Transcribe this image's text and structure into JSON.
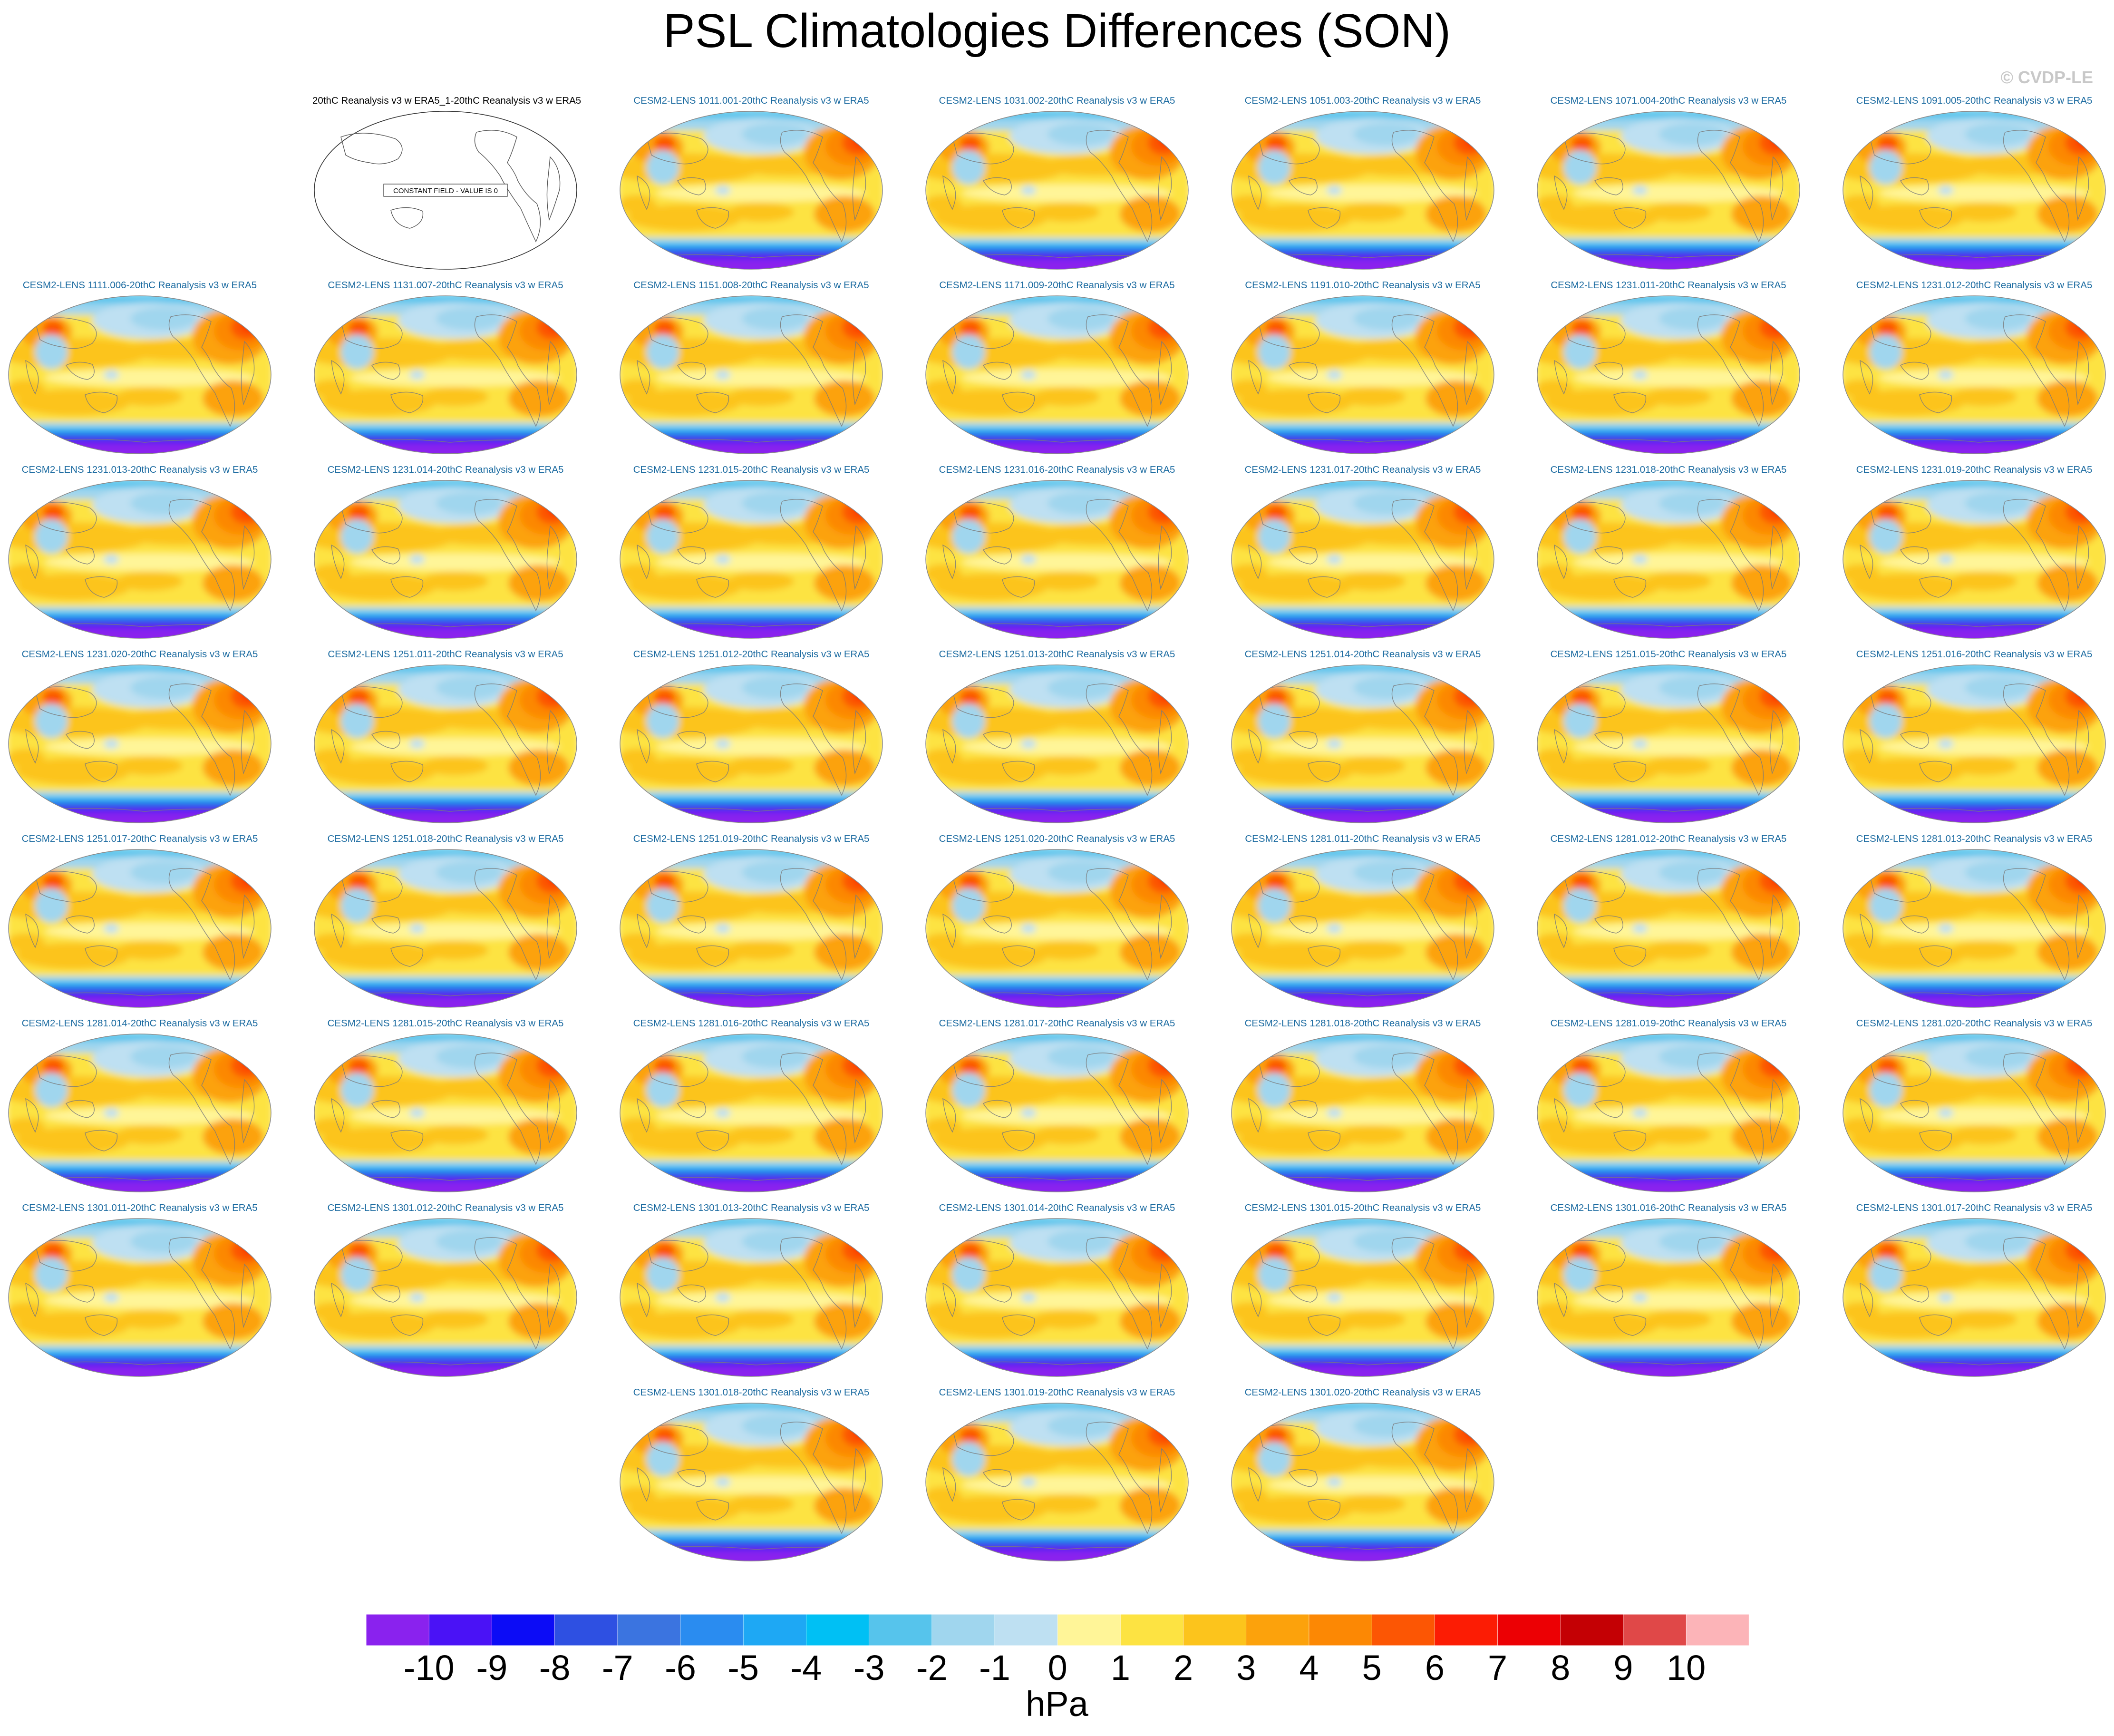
{
  "title": "PSL Climatologies Differences (SON)",
  "credit": "© CVDP-LE",
  "obs_panel": {
    "title": "20thC Reanalysis v3 w ERA5_1-20thC Reanalysis v3 w ERA5",
    "note": "CONSTANT FIELD - VALUE IS 0"
  },
  "chart_data": {
    "type": "heatmap",
    "title": "PSL Climatologies Differences (SON)",
    "variable": "PSL",
    "season": "SON",
    "projection": "Robinson, Pacific-centered global map",
    "units": "hPa",
    "colorbar": {
      "levels": [
        -10,
        -9,
        -8,
        -7,
        -6,
        -5,
        -4,
        -3,
        -2,
        -1,
        0,
        1,
        2,
        3,
        4,
        5,
        6,
        7,
        8,
        9,
        10
      ],
      "labels": [
        "-10",
        "-9",
        "-8",
        "-7",
        "-6",
        "-5",
        "-4",
        "-3",
        "-2",
        "-1",
        "0",
        "1",
        "2",
        "3",
        "4",
        "5",
        "6",
        "7",
        "8",
        "9",
        "10"
      ],
      "colors": [
        "#8a22ee",
        "#4a12f6",
        "#0c0cf6",
        "#2e50e2",
        "#3b74e0",
        "#2a8cf0",
        "#1ea8f4",
        "#00c0f4",
        "#56c4ec",
        "#a0d6ee",
        "#bee0f2",
        "#fff598",
        "#fde342",
        "#fcc41c",
        "#fca20c",
        "#fc8804",
        "#fc5604",
        "#fc1c04",
        "#ec0004",
        "#c40004",
        "#e04848",
        "#fcb4b8"
      ]
    },
    "panels": [
      {
        "title": "20thC Reanalysis v3 w ERA5_1-20thC Reanalysis v3 w ERA5",
        "constant_value": 0
      },
      {
        "title": "CESM2-LENS 1011.001-20thC Reanalysis v3 w ERA5"
      },
      {
        "title": "CESM2-LENS 1031.002-20thC Reanalysis v3 w ERA5"
      },
      {
        "title": "CESM2-LENS 1051.003-20thC Reanalysis v3 w ERA5"
      },
      {
        "title": "CESM2-LENS 1071.004-20thC Reanalysis v3 w ERA5"
      },
      {
        "title": "CESM2-LENS 1091.005-20thC Reanalysis v3 w ERA5"
      },
      {
        "title": "CESM2-LENS 1111.006-20thC Reanalysis v3 w ERA5"
      },
      {
        "title": "CESM2-LENS 1131.007-20thC Reanalysis v3 w ERA5"
      },
      {
        "title": "CESM2-LENS 1151.008-20thC Reanalysis v3 w ERA5"
      },
      {
        "title": "CESM2-LENS 1171.009-20thC Reanalysis v3 w ERA5"
      },
      {
        "title": "CESM2-LENS 1191.010-20thC Reanalysis v3 w ERA5"
      },
      {
        "title": "CESM2-LENS 1231.011-20thC Reanalysis v3 w ERA5"
      },
      {
        "title": "CESM2-LENS 1231.012-20thC Reanalysis v3 w ERA5"
      },
      {
        "title": "CESM2-LENS 1231.013-20thC Reanalysis v3 w ERA5"
      },
      {
        "title": "CESM2-LENS 1231.014-20thC Reanalysis v3 w ERA5"
      },
      {
        "title": "CESM2-LENS 1231.015-20thC Reanalysis v3 w ERA5"
      },
      {
        "title": "CESM2-LENS 1231.016-20thC Reanalysis v3 w ERA5"
      },
      {
        "title": "CESM2-LENS 1231.017-20thC Reanalysis v3 w ERA5"
      },
      {
        "title": "CESM2-LENS 1231.018-20thC Reanalysis v3 w ERA5"
      },
      {
        "title": "CESM2-LENS 1231.019-20thC Reanalysis v3 w ERA5"
      },
      {
        "title": "CESM2-LENS 1231.020-20thC Reanalysis v3 w ERA5"
      },
      {
        "title": "CESM2-LENS 1251.011-20thC Reanalysis v3 w ERA5"
      },
      {
        "title": "CESM2-LENS 1251.012-20thC Reanalysis v3 w ERA5"
      },
      {
        "title": "CESM2-LENS 1251.013-20thC Reanalysis v3 w ERA5"
      },
      {
        "title": "CESM2-LENS 1251.014-20thC Reanalysis v3 w ERA5"
      },
      {
        "title": "CESM2-LENS 1251.015-20thC Reanalysis v3 w ERA5"
      },
      {
        "title": "CESM2-LENS 1251.016-20thC Reanalysis v3 w ERA5"
      },
      {
        "title": "CESM2-LENS 1251.017-20thC Reanalysis v3 w ERA5"
      },
      {
        "title": "CESM2-LENS 1251.018-20thC Reanalysis v3 w ERA5"
      },
      {
        "title": "CESM2-LENS 1251.019-20thC Reanalysis v3 w ERA5"
      },
      {
        "title": "CESM2-LENS 1251.020-20thC Reanalysis v3 w ERA5"
      },
      {
        "title": "CESM2-LENS 1281.011-20thC Reanalysis v3 w ERA5"
      },
      {
        "title": "CESM2-LENS 1281.012-20thC Reanalysis v3 w ERA5"
      },
      {
        "title": "CESM2-LENS 1281.013-20thC Reanalysis v3 w ERA5"
      },
      {
        "title": "CESM2-LENS 1281.014-20thC Reanalysis v3 w ERA5"
      },
      {
        "title": "CESM2-LENS 1281.015-20thC Reanalysis v3 w ERA5"
      },
      {
        "title": "CESM2-LENS 1281.016-20thC Reanalysis v3 w ERA5"
      },
      {
        "title": "CESM2-LENS 1281.017-20thC Reanalysis v3 w ERA5"
      },
      {
        "title": "CESM2-LENS 1281.018-20thC Reanalysis v3 w ERA5"
      },
      {
        "title": "CESM2-LENS 1281.019-20thC Reanalysis v3 w ERA5"
      },
      {
        "title": "CESM2-LENS 1281.020-20thC Reanalysis v3 w ERA5"
      },
      {
        "title": "CESM2-LENS 1301.011-20thC Reanalysis v3 w ERA5"
      },
      {
        "title": "CESM2-LENS 1301.012-20thC Reanalysis v3 w ERA5"
      },
      {
        "title": "CESM2-LENS 1301.013-20thC Reanalysis v3 w ERA5"
      },
      {
        "title": "CESM2-LENS 1301.014-20thC Reanalysis v3 w ERA5"
      },
      {
        "title": "CESM2-LENS 1301.015-20thC Reanalysis v3 w ERA5"
      },
      {
        "title": "CESM2-LENS 1301.016-20thC Reanalysis v3 w ERA5"
      },
      {
        "title": "CESM2-LENS 1301.017-20thC Reanalysis v3 w ERA5"
      },
      {
        "title": "CESM2-LENS 1301.018-20thC Reanalysis v3 w ERA5"
      },
      {
        "title": "CESM2-LENS 1301.019-20thC Reanalysis v3 w ERA5"
      },
      {
        "title": "CESM2-LENS 1301.020-20thC Reanalysis v3 w ERA5"
      }
    ]
  }
}
